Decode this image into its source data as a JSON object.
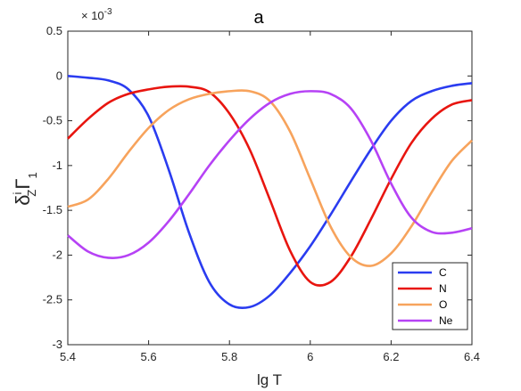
{
  "chart_data": {
    "type": "line",
    "title": "a",
    "xlabel": "lg T",
    "ylabel": {
      "main": "δΓ",
      "superscript": "i",
      "subscript": "Z",
      "index": "1"
    },
    "exponent_label": "× 10",
    "exponent_power": "-3",
    "xlim": [
      5.4,
      6.4
    ],
    "ylim": [
      -3,
      0.5
    ],
    "xticks": [
      "5.4",
      "5.6",
      "5.8",
      "6",
      "6.2",
      "6.4"
    ],
    "yticks": [
      "0.5",
      "0",
      "-0.5",
      "-1",
      "-1.5",
      "-2",
      "-2.5",
      "-3"
    ],
    "ytick_values": [
      0.5,
      0,
      -0.5,
      -1,
      -1.5,
      -2,
      -2.5,
      -3
    ],
    "xtick_values": [
      5.4,
      5.6,
      5.8,
      6.0,
      6.2,
      6.4
    ],
    "legend_position": "bottom-right",
    "grid": false,
    "x": [
      5.4,
      5.45,
      5.5,
      5.55,
      5.6,
      5.65,
      5.7,
      5.75,
      5.8,
      5.85,
      5.9,
      5.95,
      6.0,
      6.05,
      6.1,
      6.15,
      6.2,
      6.25,
      6.3,
      6.35,
      6.4
    ],
    "series": [
      {
        "name": "C",
        "color": "#2a3cf0",
        "values": [
          0.0,
          -0.02,
          -0.05,
          -0.15,
          -0.45,
          -1.05,
          -1.75,
          -2.3,
          -2.55,
          -2.58,
          -2.45,
          -2.2,
          -1.9,
          -1.55,
          -1.18,
          -0.82,
          -0.5,
          -0.28,
          -0.17,
          -0.11,
          -0.08
        ]
      },
      {
        "name": "N",
        "color": "#e8150f",
        "values": [
          -0.7,
          -0.48,
          -0.3,
          -0.2,
          -0.15,
          -0.12,
          -0.12,
          -0.18,
          -0.42,
          -0.82,
          -1.38,
          -1.95,
          -2.3,
          -2.3,
          -2.02,
          -1.6,
          -1.15,
          -0.75,
          -0.48,
          -0.32,
          -0.27
        ]
      },
      {
        "name": "O",
        "color": "#f7a35c",
        "values": [
          -1.46,
          -1.38,
          -1.15,
          -0.85,
          -0.58,
          -0.38,
          -0.26,
          -0.2,
          -0.17,
          -0.17,
          -0.28,
          -0.62,
          -1.15,
          -1.68,
          -2.02,
          -2.12,
          -1.98,
          -1.68,
          -1.3,
          -0.95,
          -0.72
        ]
      },
      {
        "name": "Ne",
        "color": "#b642f5",
        "values": [
          -1.78,
          -1.96,
          -2.03,
          -2.0,
          -1.86,
          -1.62,
          -1.32,
          -1.0,
          -0.72,
          -0.48,
          -0.3,
          -0.2,
          -0.17,
          -0.2,
          -0.36,
          -0.72,
          -1.2,
          -1.58,
          -1.74,
          -1.75,
          -1.7
        ]
      }
    ]
  }
}
